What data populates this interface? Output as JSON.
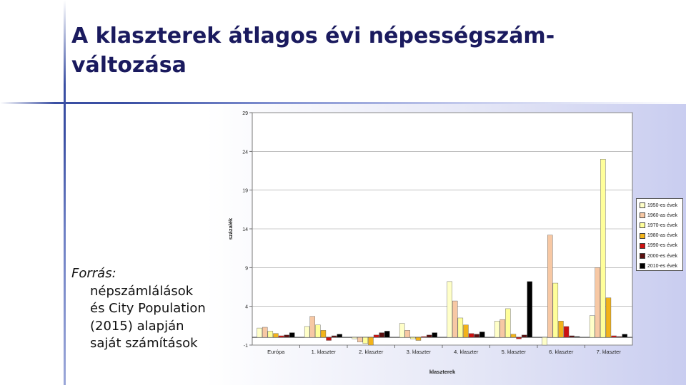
{
  "slide": {
    "title": "A klaszterek átlagos évi népességszám-változása",
    "source_label": "Forrás:",
    "source_text": "népszámlálások és City Population (2015) alapján saját számítások"
  },
  "chart_data": {
    "type": "bar",
    "xlabel": "klaszterek",
    "ylabel": "százalék",
    "ylim": [
      -1,
      29
    ],
    "yticks": [
      -1,
      4,
      9,
      14,
      19,
      24,
      29
    ],
    "grid": true,
    "legend_position": "right",
    "categories": [
      "Európa",
      "1. klaszter",
      "2. klaszter",
      "3. klaszter",
      "4. klaszter",
      "5. klaszter",
      "6. klaszter",
      "7. klaszter"
    ],
    "series": [
      {
        "name": "1950-es évek",
        "color": "#ffffc8",
        "values": [
          1.2,
          1.4,
          -0.2,
          1.8,
          7.2,
          2.1,
          -1.0,
          2.8
        ]
      },
      {
        "name": "1960-as évek",
        "color": "#f7c8a4",
        "values": [
          1.3,
          2.7,
          -0.6,
          0.9,
          4.7,
          2.3,
          13.2,
          9.0
        ]
      },
      {
        "name": "1970-es évek",
        "color": "#ffff9a",
        "values": [
          0.8,
          1.6,
          -0.8,
          -0.2,
          2.5,
          3.7,
          7.0,
          23.0
        ]
      },
      {
        "name": "1980-as évek",
        "color": "#f2b31a",
        "values": [
          0.5,
          0.9,
          -1.0,
          -0.4,
          1.6,
          0.4,
          2.1,
          5.1
        ]
      },
      {
        "name": "1990-es évek",
        "color": "#cc1111",
        "values": [
          0.2,
          -0.4,
          0.3,
          0.1,
          0.5,
          -0.2,
          1.4,
          0.2
        ]
      },
      {
        "name": "2000-es évek",
        "color": "#5a1010",
        "values": [
          0.3,
          0.2,
          0.6,
          0.3,
          0.4,
          0.3,
          0.2,
          0.1
        ]
      },
      {
        "name": "2010-es évek",
        "color": "#000000",
        "values": [
          0.6,
          0.4,
          0.8,
          0.6,
          0.7,
          7.2,
          0.1,
          0.4
        ]
      }
    ]
  }
}
